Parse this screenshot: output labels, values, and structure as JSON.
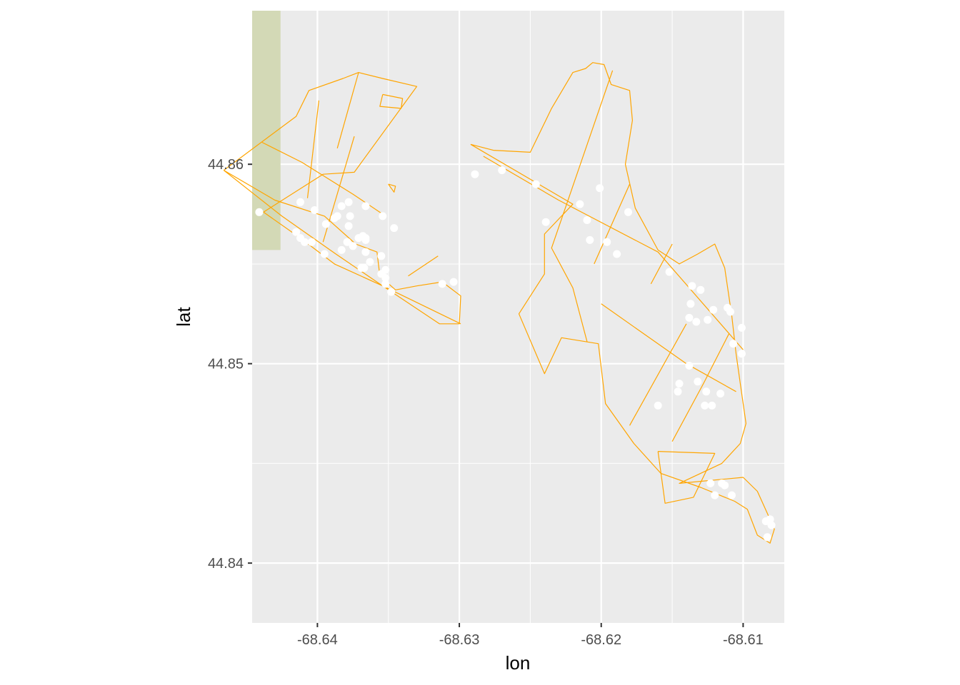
{
  "chart_data": {
    "type": "scatter",
    "title": "",
    "xlabel": "lon",
    "ylabel": "lat",
    "xlim": [
      -68.6446,
      -68.6071
    ],
    "ylim": [
      44.837,
      44.8677
    ],
    "x_ticks": [
      {
        "value": -68.64,
        "label": "-68.64"
      },
      {
        "value": -68.63,
        "label": "-68.63"
      },
      {
        "value": -68.62,
        "label": "-68.62"
      },
      {
        "value": -68.61,
        "label": "-68.61"
      }
    ],
    "y_ticks": [
      {
        "value": 44.84,
        "label": "44.84"
      },
      {
        "value": 44.85,
        "label": "44.85"
      },
      {
        "value": 44.86,
        "label": "44.86"
      }
    ],
    "grid": true,
    "background": {
      "panel": "#ebebeb",
      "grid": "#ffffff"
    },
    "colors": {
      "outline": "#ffa500",
      "points": "#ffffff",
      "basemap_tile": "#d3d9b6"
    },
    "basemap_tile": {
      "lon": [
        -68.6446,
        -68.6426
      ],
      "lat": [
        44.8557,
        44.8677
      ]
    },
    "outlines": [
      [
        [
          -68.6466,
          44.8597
        ],
        [
          -68.6415,
          44.8624
        ],
        [
          -68.6406,
          44.8637
        ],
        [
          -68.6382,
          44.8643
        ],
        [
          -68.6371,
          44.8646
        ],
        [
          -68.6354,
          44.8643
        ],
        [
          -68.633,
          44.8639
        ],
        [
          -68.6374,
          44.8596
        ],
        [
          -68.6396,
          44.8595
        ],
        [
          -68.6438,
          44.8576
        ],
        [
          -68.6412,
          44.8563
        ],
        [
          -68.6388,
          44.855
        ],
        [
          -68.6354,
          44.8539
        ],
        [
          -68.6314,
          44.852
        ],
        [
          -68.63,
          44.852
        ],
        [
          -68.6299,
          44.8534
        ],
        [
          -68.6312,
          44.8541
        ],
        [
          -68.633,
          44.8539
        ],
        [
          -68.6345,
          44.8537
        ],
        [
          -68.6356,
          44.8544
        ],
        [
          -68.6358,
          44.8556
        ],
        [
          -68.6373,
          44.856
        ],
        [
          -68.6395,
          44.8574
        ],
        [
          -68.643,
          44.8582
        ],
        [
          -68.6466,
          44.8597
        ]
      ],
      [
        [
          -68.6466,
          44.8597
        ],
        [
          -68.6425,
          44.8574
        ],
        [
          -68.6387,
          44.8555
        ],
        [
          -68.6354,
          44.8539
        ],
        [
          -68.6299,
          44.852
        ]
      ],
      [
        [
          -68.6439,
          44.8611
        ],
        [
          -68.6411,
          44.8601
        ],
        [
          -68.6375,
          44.8585
        ],
        [
          -68.6354,
          44.8575
        ]
      ],
      [
        [
          -68.6399,
          44.8632
        ],
        [
          -68.6407,
          44.8583
        ]
      ],
      [
        [
          -68.6374,
          44.8614
        ],
        [
          -68.6396,
          44.8561
        ]
      ],
      [
        [
          -68.6371,
          44.8646
        ],
        [
          -68.6386,
          44.8608
        ]
      ],
      [
        [
          -68.6315,
          44.8554
        ],
        [
          -68.6336,
          44.8544
        ]
      ],
      [
        [
          -68.6354,
          44.8635
        ],
        [
          -68.634,
          44.8633
        ],
        [
          -68.6341,
          44.8628
        ],
        [
          -68.6356,
          44.8629
        ],
        [
          -68.6354,
          44.8635
        ]
      ],
      [
        [
          -68.635,
          44.859
        ],
        [
          -68.6345,
          44.8589
        ],
        [
          -68.6346,
          44.8586
        ],
        [
          -68.635,
          44.859
        ]
      ],
      [
        [
          -68.6292,
          44.861
        ],
        [
          -68.6276,
          44.8607
        ],
        [
          -68.625,
          44.8606
        ],
        [
          -68.6235,
          44.8628
        ],
        [
          -68.622,
          44.8646
        ],
        [
          -68.6211,
          44.8648
        ],
        [
          -68.6206,
          44.8651
        ],
        [
          -68.6198,
          44.865
        ],
        [
          -68.6193,
          44.864
        ],
        [
          -68.618,
          44.8637
        ],
        [
          -68.6178,
          44.8622
        ],
        [
          -68.6183,
          44.86
        ],
        [
          -68.6176,
          44.8578
        ],
        [
          -68.616,
          44.8557
        ],
        [
          -68.6145,
          44.855
        ],
        [
          -68.6132,
          44.8555
        ],
        [
          -68.612,
          44.856
        ],
        [
          -68.6113,
          44.8548
        ],
        [
          -68.6108,
          44.8524
        ],
        [
          -68.6105,
          44.8505
        ],
        [
          -68.6102,
          44.849
        ],
        [
          -68.6098,
          44.847
        ],
        [
          -68.6102,
          44.846
        ],
        [
          -68.6115,
          44.845
        ],
        [
          -68.6145,
          44.844
        ],
        [
          -68.61,
          44.8443
        ],
        [
          -68.609,
          44.8436
        ],
        [
          -68.6083,
          44.8425
        ],
        [
          -68.6078,
          44.8417
        ],
        [
          -68.6081,
          44.841
        ],
        [
          -68.609,
          44.8414
        ],
        [
          -68.6097,
          44.8427
        ],
        [
          -68.6106,
          44.8431
        ],
        [
          -68.613,
          44.8438
        ],
        [
          -68.6158,
          44.8445
        ],
        [
          -68.6177,
          44.846
        ],
        [
          -68.6197,
          44.848
        ],
        [
          -68.6202,
          44.851
        ],
        [
          -68.6228,
          44.8513
        ],
        [
          -68.624,
          44.8495
        ],
        [
          -68.6258,
          44.8525
        ],
        [
          -68.624,
          44.8545
        ],
        [
          -68.624,
          44.8565
        ],
        [
          -68.622,
          44.858
        ],
        [
          -68.6292,
          44.861
        ]
      ],
      [
        [
          -68.6283,
          44.8604
        ],
        [
          -68.623,
          44.8582
        ],
        [
          -68.616,
          44.8556
        ],
        [
          -68.61,
          44.8507
        ]
      ],
      [
        [
          -68.6192,
          44.8647
        ],
        [
          -68.6235,
          44.8558
        ],
        [
          -68.622,
          44.8538
        ],
        [
          -68.621,
          44.8511
        ]
      ],
      [
        [
          -68.618,
          44.859
        ],
        [
          -68.6205,
          44.855
        ]
      ],
      [
        [
          -68.615,
          44.856
        ],
        [
          -68.6165,
          44.854
        ]
      ],
      [
        [
          -68.62,
          44.853
        ],
        [
          -68.614,
          44.85
        ],
        [
          -68.6105,
          44.8486
        ]
      ],
      [
        [
          -68.614,
          44.852
        ],
        [
          -68.618,
          44.8469
        ]
      ],
      [
        [
          -68.611,
          44.8515
        ],
        [
          -68.6128,
          44.849
        ],
        [
          -68.615,
          44.8461
        ]
      ],
      [
        [
          -68.616,
          44.8456
        ],
        [
          -68.6155,
          44.843
        ],
        [
          -68.6135,
          44.8433
        ],
        [
          -68.612,
          44.8455
        ],
        [
          -68.616,
          44.8456
        ]
      ]
    ],
    "points": {
      "lon": [
        -68.6441,
        -68.6412,
        -68.6402,
        -68.6383,
        -68.6366,
        -68.6378,
        -68.6377,
        -68.6388,
        -68.6394,
        -68.6415,
        -68.6412,
        -68.6409,
        -68.6404,
        -68.6395,
        -68.6383,
        -68.6379,
        -68.6366,
        -68.6369,
        -68.6367,
        -68.6363,
        -68.6355,
        -68.6352,
        -68.6348,
        -68.6352,
        -68.6386,
        -68.6378,
        -68.6371,
        -68.6368,
        -68.6354,
        -68.6346,
        -68.6366,
        -68.6375,
        -68.6366,
        -68.6352,
        -68.6355,
        -68.6312,
        -68.6304,
        -68.6289,
        -68.627,
        -68.6246,
        -68.6239,
        -68.6201,
        -68.6215,
        -68.621,
        -68.6208,
        -68.6196,
        -68.6189,
        -68.6181,
        -68.6152,
        -68.6136,
        -68.613,
        -68.6111,
        -68.6121,
        -68.6125,
        -68.6138,
        -68.6133,
        -68.6137,
        -68.6101,
        -68.6109,
        -68.6107,
        -68.6101,
        -68.616,
        -68.6146,
        -68.6145,
        -68.6138,
        -68.6132,
        -68.6126,
        -68.6127,
        -68.6116,
        -68.6122,
        -68.6084,
        -68.6083,
        -68.608,
        -68.6081,
        -68.6108,
        -68.6113,
        -68.6123,
        -68.6115,
        -68.612
      ],
      "lat": [
        44.8576,
        44.8581,
        44.8577,
        44.8579,
        44.8579,
        44.8581,
        44.8574,
        44.8573,
        44.857,
        44.8566,
        44.8563,
        44.8561,
        44.8561,
        44.8555,
        44.8557,
        44.8561,
        44.8556,
        44.8548,
        44.8548,
        44.8551,
        44.8545,
        44.854,
        44.8536,
        44.8543,
        44.8574,
        44.8569,
        44.8563,
        44.8564,
        44.8574,
        44.8568,
        44.8563,
        44.8559,
        44.8562,
        44.8547,
        44.8554,
        44.854,
        44.8541,
        44.8595,
        44.8597,
        44.859,
        44.8571,
        44.8588,
        44.858,
        44.8572,
        44.8562,
        44.8561,
        44.8555,
        44.8576,
        44.8546,
        44.8539,
        44.8537,
        44.8528,
        44.8527,
        44.8522,
        44.8523,
        44.8521,
        44.853,
        44.8518,
        44.8526,
        44.851,
        44.8505,
        44.8479,
        44.8486,
        44.849,
        44.8499,
        44.8491,
        44.8486,
        44.8479,
        44.8485,
        44.8479,
        44.8421,
        44.8413,
        44.8419,
        44.8422,
        44.8434,
        44.8439,
        44.844,
        44.844,
        44.8434
      ]
    }
  }
}
